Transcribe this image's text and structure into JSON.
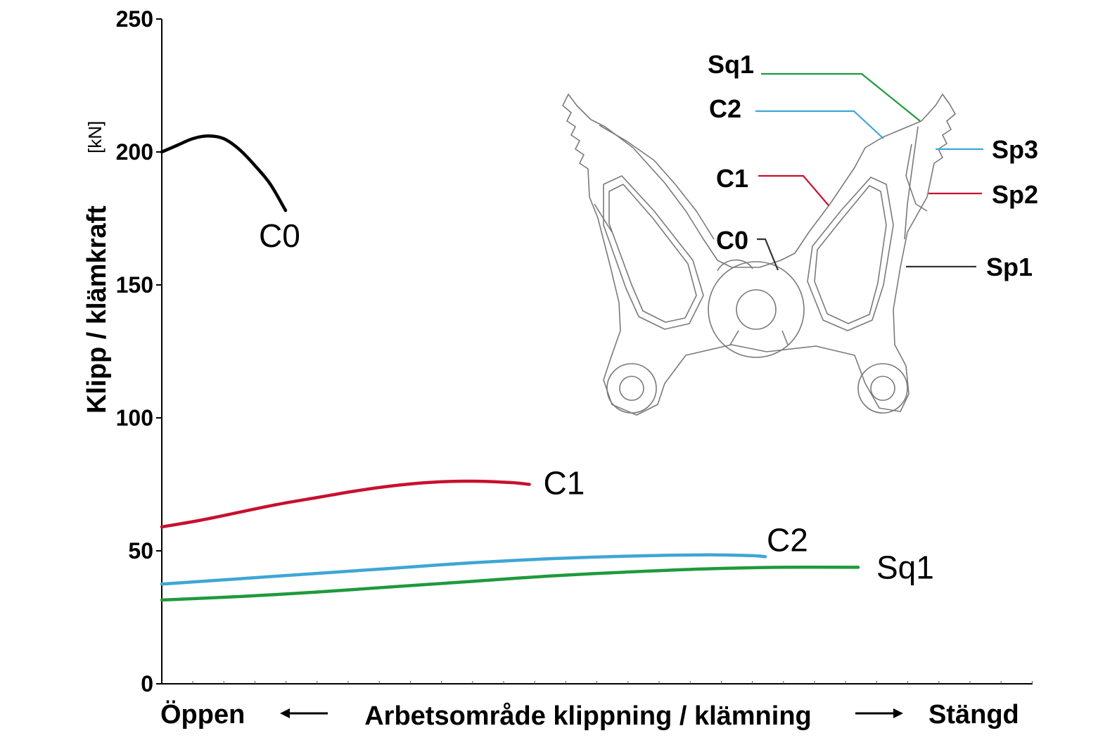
{
  "chart_data": {
    "type": "line",
    "ylabel": "Klipp / klämkraft",
    "yunit": "[kN]",
    "ylim": [
      0,
      250
    ],
    "yticks": [
      0,
      50,
      100,
      150,
      200,
      250
    ],
    "xlabel": {
      "left": "Öppen",
      "center": "Arbetsområde klippning / klämning",
      "right": "Stängd"
    },
    "xlim": [
      0,
      1
    ],
    "grid": false,
    "series": [
      {
        "name": "C0",
        "color": "#000000",
        "x": [
          0,
          0.02,
          0.04,
          0.06,
          0.08,
          0.1,
          0.12,
          0.14,
          0.16
        ],
        "y": [
          200,
          202.5,
          205,
          206,
          205,
          201,
          195,
          188,
          178
        ]
      },
      {
        "name": "C1",
        "color": "#c8102e",
        "x": [
          0,
          0.05,
          0.1,
          0.15,
          0.2,
          0.25,
          0.3,
          0.35,
          0.4,
          0.45,
          0.475
        ],
        "y": [
          59,
          61.5,
          64.5,
          67.5,
          70,
          72.5,
          74.5,
          75.8,
          76.2,
          75.7,
          75
        ]
      },
      {
        "name": "C2",
        "color": "#3ea6d6",
        "x": [
          0,
          0.1,
          0.2,
          0.3,
          0.4,
          0.5,
          0.6,
          0.7,
          0.76,
          0.78
        ],
        "y": [
          37.5,
          39.5,
          41.5,
          43.5,
          45.5,
          47,
          48,
          48.5,
          48.2,
          47.8
        ]
      },
      {
        "name": "Sq1",
        "color": "#1f9a3c",
        "x": [
          0,
          0.1,
          0.2,
          0.3,
          0.4,
          0.5,
          0.6,
          0.7,
          0.8,
          0.9
        ],
        "y": [
          31.5,
          32.8,
          34.5,
          36.5,
          38.5,
          40.5,
          42,
          43.2,
          43.8,
          43.8
        ]
      }
    ]
  },
  "inset": {
    "labels": [
      {
        "text": "Sq1",
        "color": "#1f9a3c"
      },
      {
        "text": "C2",
        "color": "#3ea6d6"
      },
      {
        "text": "C1",
        "color": "#c8102e"
      },
      {
        "text": "C0",
        "color": "#333333"
      },
      {
        "text": "Sp3",
        "color": "#3ea6d6"
      },
      {
        "text": "Sp2",
        "color": "#c8102e"
      },
      {
        "text": "Sp1",
        "color": "#333333"
      }
    ]
  }
}
